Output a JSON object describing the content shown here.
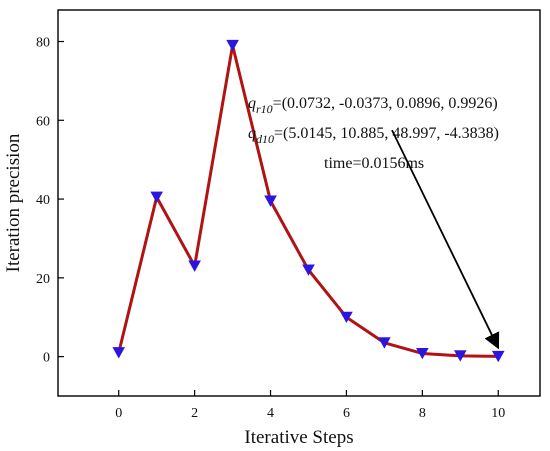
{
  "chart_data": {
    "type": "line",
    "title": "",
    "xlabel": "Iterative Steps",
    "ylabel": "Iteration precision",
    "xlim": [
      -1.6,
      11.1
    ],
    "ylim": [
      -10,
      88
    ],
    "xticks": [
      0,
      2,
      4,
      6,
      8,
      10
    ],
    "yticks": [
      0,
      20,
      40,
      60,
      80
    ],
    "xtick_labels": [
      "0",
      "2",
      "4",
      "6",
      "8",
      "10"
    ],
    "ytick_labels": [
      "0",
      "20",
      "40",
      "60",
      "80"
    ],
    "grid": false,
    "legend": "none",
    "series": [
      {
        "x": [
          0,
          1,
          2,
          3,
          4,
          5,
          6,
          7,
          8,
          9,
          10
        ],
        "y": [
          1,
          40.5,
          23,
          79,
          39.5,
          22,
          10,
          3.5,
          0.8,
          0.2,
          0.05
        ],
        "line_color": "#b01313",
        "marker": "triangle-down",
        "marker_color": "#2b16e0"
      }
    ],
    "annotations": {
      "q_r10": {
        "symbol": "q",
        "subscript": "r10",
        "value": "=(0.0732, -0.0373, 0.0896, 0.9926)"
      },
      "q_d10": {
        "symbol": "q",
        "subscript": "d10",
        "value": "=(5.0145, 10.885, 48.997, -4.3838)"
      },
      "time": "time=0.0156ms",
      "arrow": {
        "from": [
          7.2,
          57.5
        ],
        "to": [
          10,
          2.2
        ]
      }
    },
    "colors": {
      "frame": "#000000",
      "arrow": "#000000"
    }
  }
}
